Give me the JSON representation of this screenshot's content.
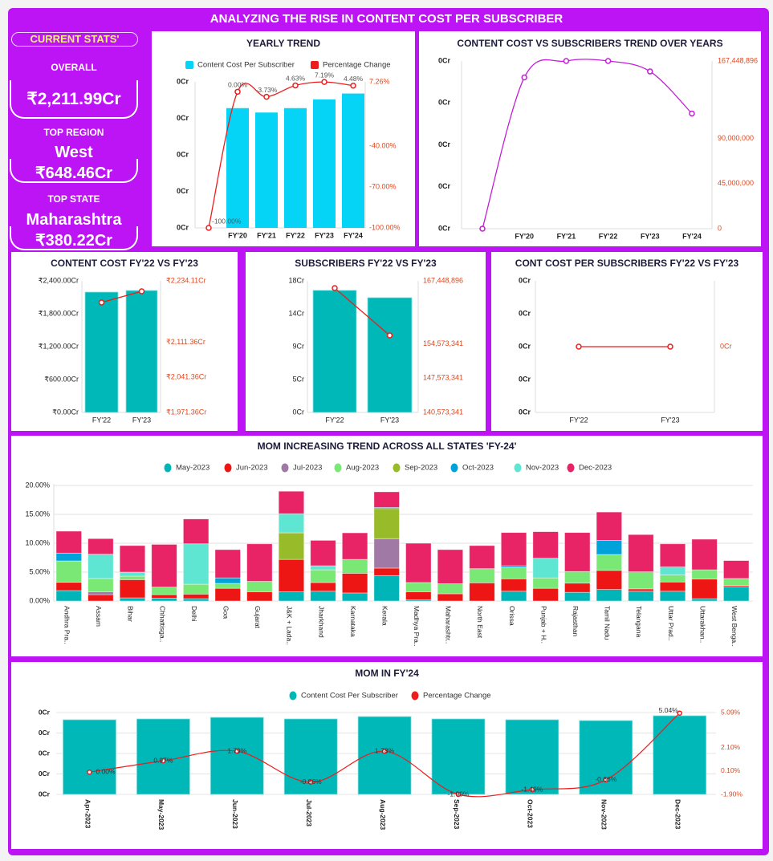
{
  "header": {
    "title": "ANALYZING THE RISE IN CONTENT COST PER SUBSCRIBER"
  },
  "stats": {
    "heading": "CURRENT STATS'",
    "overall_label": "OVERALL",
    "overall_value": "₹2,211.99Cr",
    "region_label": "TOP REGION",
    "region_name": "West",
    "region_value": "₹648.46Cr",
    "state_label": "TOP STATE",
    "state_name": "Maharashtra",
    "state_value": "₹380.22Cr"
  },
  "colors": {
    "frame": "#bd14f5",
    "cyan_bar": "#06d4f6",
    "teal_bar": "#00b8b8",
    "line_red": "#ee1c1c",
    "line_purple": "#c21ed6",
    "axis_right_text": "#e0461c"
  },
  "chart_data": [
    {
      "type": "bar+line",
      "title": "YEARLY TREND",
      "legend": [
        "Content Cost Per Subscriber",
        "Percentage Change"
      ],
      "categories": [
        "",
        "FY'20",
        "FY'21",
        "FY'22",
        "FY'23",
        "FY'24"
      ],
      "bar_level_fraction_of_axis": [
        null,
        0.82,
        0.79,
        0.82,
        0.88,
        0.92
      ],
      "line_values": [
        -100,
        0,
        -3.73,
        4.63,
        7.19,
        4.48
      ],
      "line_labels": [
        "-100.00%",
        "0.00%",
        "-3.73%",
        "4.63%",
        "7.19%",
        "4.48%"
      ],
      "left_ticks": [
        "0Cr",
        "0Cr",
        "0Cr",
        "0Cr",
        "0Cr"
      ],
      "y2lim": [
        -100,
        7.26
      ],
      "right_ticks": [
        {
          "value": 7.26,
          "label": "7.26%"
        },
        {
          "value": -40,
          "label": "-40.00%"
        },
        {
          "value": -70,
          "label": "-70.00%"
        },
        {
          "value": -100,
          "label": "-100.00%"
        }
      ]
    },
    {
      "type": "line",
      "title": "CONTENT COST VS SUBSCRIBERS TREND OVER YEARS",
      "categories": [
        "",
        "FY'20",
        "FY'21",
        "FY'22",
        "FY'23",
        "FY'24"
      ],
      "line_values": [
        0,
        151000000,
        167448896,
        167448896,
        157000000,
        115000000
      ],
      "left_ticks": [
        "0Cr",
        "0Cr",
        "0Cr",
        "0Cr",
        "0Cr"
      ],
      "y2lim": [
        0,
        167448896
      ],
      "right_ticks": [
        {
          "value": 167448896,
          "label": "167,448,896"
        },
        {
          "value": 90000000,
          "label": "90,000,000"
        },
        {
          "value": 45000000,
          "label": "45,000,000"
        },
        {
          "value": 0,
          "label": "0"
        }
      ]
    },
    {
      "type": "bar+line",
      "title": "CONTENT COST FY'22 VS FY'23",
      "categories": [
        "FY'22",
        "FY'23"
      ],
      "bar_values": [
        2195,
        2224
      ],
      "ylim": [
        0,
        2400
      ],
      "left_ticks": [
        {
          "value": 2400,
          "label": "₹2,400.00Cr"
        },
        {
          "value": 1800,
          "label": "₹1,800.00Cr"
        },
        {
          "value": 1200,
          "label": "₹1,200.00Cr"
        },
        {
          "value": 600,
          "label": "₹600.00Cr"
        },
        {
          "value": 0,
          "label": "₹0.00Cr"
        }
      ],
      "line_values": [
        2190.9,
        2213.3
      ],
      "y2lim": [
        1971.36,
        2234.11
      ],
      "right_ticks": [
        {
          "value": 2234.11,
          "label": "₹2,234.11Cr"
        },
        {
          "value": 2111.36,
          "label": "₹2,111.36Cr"
        },
        {
          "value": 2041.36,
          "label": "₹2,041.36Cr"
        },
        {
          "value": 1971.36,
          "label": "₹1,971.36Cr"
        }
      ]
    },
    {
      "type": "bar+line",
      "title": "SUBSCRIBERS FY'22 VS FY'23",
      "categories": [
        "FY'22",
        "FY'23"
      ],
      "bar_values": [
        16.7,
        15.7
      ],
      "ylim": [
        0,
        18
      ],
      "left_ticks": [
        {
          "value": 18,
          "label": "18Cr"
        },
        {
          "value": 13.5,
          "label": "14Cr"
        },
        {
          "value": 9,
          "label": "9Cr"
        },
        {
          "value": 4.5,
          "label": "5Cr"
        },
        {
          "value": 0,
          "label": "0Cr"
        }
      ],
      "line_values": [
        165970000,
        156300000
      ],
      "y2lim": [
        140573341,
        167448896
      ],
      "right_ticks": [
        {
          "value": 167448896,
          "label": "167,448,896"
        },
        {
          "value": 154573341,
          "label": "154,573,341"
        },
        {
          "value": 147573341,
          "label": "147,573,341"
        },
        {
          "value": 140573341,
          "label": "140,573,341"
        }
      ]
    },
    {
      "type": "line",
      "title": "CONT COST PER SUBSCRIBERS FY'22 VS FY'23",
      "categories": [
        "FY'22",
        "FY'23"
      ],
      "line_values": [
        0,
        0
      ],
      "left_ticks": [
        "0Cr",
        "0Cr",
        "0Cr",
        "0Cr",
        "0Cr"
      ],
      "right_ticks": [
        "0Cr"
      ]
    },
    {
      "type": "bar",
      "stacked": true,
      "title": "MOM INCREASING TREND ACROSS ALL STATES 'FY-24'",
      "ylim": [
        0,
        20
      ],
      "grid": true,
      "legend_position": "top",
      "y_ticks": [
        {
          "value": 20,
          "label": "20.00%"
        },
        {
          "value": 15,
          "label": "15.00%"
        },
        {
          "value": 10,
          "label": "10.00%"
        },
        {
          "value": 5,
          "label": "5.00%"
        },
        {
          "value": 0,
          "label": "0.00%"
        }
      ],
      "categories": [
        "Andhra Pra..",
        "Assam",
        "Bihar",
        "Chhattisga..",
        "Delhi",
        "Goa",
        "Gujarat",
        "J&K + Lada..",
        "Jharkhand",
        "Karnataka",
        "Kerala",
        "Madhya Pra..",
        "Maharashtr..",
        "North East",
        "Orissa",
        "Punjab + H..",
        "Rajasthan",
        "Tamil Nadu",
        "Telangana",
        "Uttar Prad..",
        "Uttarakhan..",
        "West Benga.."
      ],
      "series": [
        {
          "name": "May-2023",
          "color": "#00b5b8",
          "values": [
            1.8,
            0,
            0.55,
            0.5,
            0.4,
            0,
            0,
            1.6,
            1.7,
            1.4,
            4.4,
            0.2,
            0,
            0,
            1.7,
            0,
            1.5,
            2.0,
            1.7,
            1.7,
            0.4,
            2.5
          ]
        },
        {
          "name": "Jun-2023",
          "color": "#ee1515",
          "values": [
            1.44,
            1.1,
            3.15,
            0.6,
            0.8,
            2.2,
            1.6,
            5.6,
            1.5,
            3.4,
            1.3,
            1.4,
            1.25,
            3.15,
            2.15,
            2.2,
            1.6,
            3.3,
            0.4,
            1.6,
            3.4,
            0.2
          ]
        },
        {
          "name": "Jul-2023",
          "color": "#a07aa5",
          "values": [
            0,
            0.5,
            0,
            0,
            0,
            0,
            0,
            0,
            0,
            0,
            5.1,
            0,
            0,
            0,
            0,
            0,
            0,
            0,
            0,
            0,
            0,
            0
          ]
        },
        {
          "name": "Aug-2023",
          "color": "#7ae874",
          "values": [
            3.7,
            2.3,
            0.6,
            1.3,
            1.7,
            0.85,
            1.8,
            0,
            2.2,
            2.4,
            0,
            1.6,
            1.75,
            2.45,
            1.95,
            1.8,
            2.0,
            2.75,
            2.95,
            1.2,
            1.6,
            1.2
          ]
        },
        {
          "name": "Sep-2023",
          "color": "#98bb2a",
          "values": [
            0,
            0,
            0,
            0,
            0,
            0,
            0,
            4.6,
            0,
            0,
            5.2,
            0,
            0,
            0,
            0,
            0,
            0,
            0,
            0,
            0,
            0,
            0
          ]
        },
        {
          "name": "Oct-2023",
          "color": "#00a3d9",
          "values": [
            1.35,
            0,
            0,
            0,
            0,
            0.95,
            0,
            0,
            0,
            0,
            0.2,
            0,
            0,
            0,
            0.3,
            0,
            0,
            2.45,
            0,
            0,
            0,
            0
          ]
        },
        {
          "name": "Nov-2023",
          "color": "#5fe6d2",
          "values": [
            0,
            4.2,
            0.7,
            0,
            7.0,
            0,
            0,
            3.3,
            0.7,
            0,
            0,
            0,
            0,
            0,
            0,
            3.4,
            0,
            0,
            0,
            1.4,
            0,
            0
          ]
        },
        {
          "name": "Dec-2023",
          "color": "#e92466",
          "values": [
            3.8,
            2.7,
            4.6,
            7.4,
            4.3,
            4.9,
            6.5,
            3.9,
            4.4,
            4.6,
            2.7,
            6.8,
            5.9,
            4.0,
            5.75,
            4.6,
            6.75,
            4.9,
            6.45,
            4.0,
            5.3,
            3.1
          ]
        }
      ]
    },
    {
      "type": "bar+line",
      "title": "MOM IN FY'24",
      "legend": [
        "Content Cost Per Subscriber",
        "Percentage Change"
      ],
      "categories": [
        "Apr-2023",
        "May-2023",
        "Jun-2023",
        "Jul-2023",
        "Aug-2023",
        "Sep-2023",
        "Oct-2023",
        "Nov-2023",
        "Dec-2023"
      ],
      "bar_level_fraction_of_axis": [
        0.912,
        0.922,
        0.941,
        0.922,
        0.951,
        0.922,
        0.912,
        0.902,
        0.961
      ],
      "line_values": [
        0,
        0.97,
        1.79,
        -0.86,
        1.78,
        -1.9,
        -1.49,
        -0.66,
        5.04
      ],
      "line_labels": [
        "0.00%",
        "0.97%",
        "1.79%",
        "-0.86%",
        "1.78%",
        "-1.90%",
        "-1.49%",
        "-0.66%",
        "5.04%"
      ],
      "left_ticks": [
        "0Cr",
        "0Cr",
        "0Cr",
        "0Cr",
        "0Cr"
      ],
      "y2lim": [
        -1.9,
        5.09
      ],
      "right_ticks": [
        {
          "value": 5.09,
          "label": "5.09%"
        },
        {
          "value": 2.1,
          "label": "2.10%"
        },
        {
          "value": 0.1,
          "label": "0.10%"
        },
        {
          "value": -1.9,
          "label": "-1.90%"
        }
      ]
    }
  ]
}
